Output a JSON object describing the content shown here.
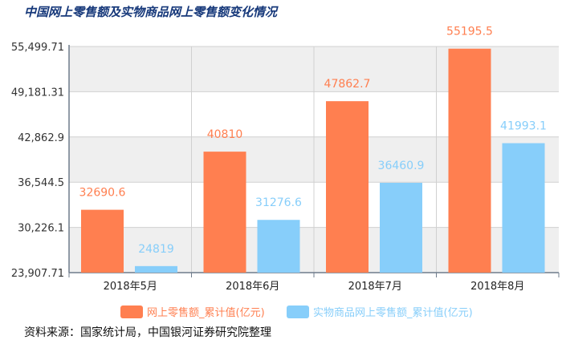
{
  "title": "中国网上零售额及实物商品网上零售额变化情况",
  "source": "资料来源：国家统计局，中国银河证券研究院整理",
  "colors": {
    "series1": "#FF7F50",
    "series2": "#87CEFA",
    "axis": "#6f7c8c",
    "grid": "#d0d0d0",
    "band": "#efefef"
  },
  "chart_data": {
    "type": "bar",
    "categories": [
      "2018年5月",
      "2018年6月",
      "2018年7月",
      "2018年8月"
    ],
    "series": [
      {
        "name": "网上零售额_累计值(亿元)",
        "values": [
          32690.6,
          40810,
          47862.7,
          55195.5
        ],
        "labels": [
          "32690.6",
          "40810",
          "47862.7",
          "55195.5"
        ]
      },
      {
        "name": "实物商品网上零售额_累计值(亿元)",
        "values": [
          24819,
          31276.6,
          36460.9,
          41993.1
        ],
        "labels": [
          "24819",
          "31276.6",
          "36460.9",
          "41993.1"
        ]
      }
    ],
    "yticks": [
      {
        "value": 23907.71,
        "label": "23,907.71"
      },
      {
        "value": 30226.1,
        "label": "30,226.1"
      },
      {
        "value": 36544.5,
        "label": "36,544.5"
      },
      {
        "value": 42862.9,
        "label": "42,862.9"
      },
      {
        "value": 49181.31,
        "label": "49,181.31"
      },
      {
        "value": 55499.71,
        "label": "55,499.71"
      }
    ],
    "ylim": [
      23907.71,
      55499.71
    ],
    "grid": true,
    "legend_position": "bottom"
  }
}
